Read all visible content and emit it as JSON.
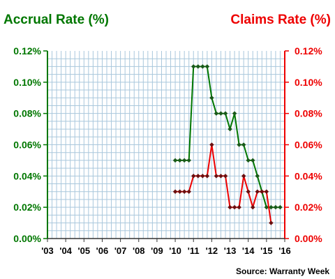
{
  "titles": {
    "left": "Accrual Rate (%)",
    "right": "Claims Rate (%)"
  },
  "source": "Source: Warranty Week",
  "colors": {
    "left_axis": "#007700",
    "right_axis": "#ee0000",
    "accrual_line": "#007700",
    "claims_line": "#ee0000",
    "grid": "#a9c7dc",
    "marker_accrual": "#1a5a1a",
    "marker_claims": "#6a1010"
  },
  "chart_data": {
    "type": "line",
    "title": "",
    "x_tick_labels": [
      "'03",
      "'04",
      "'05",
      "'06",
      "'07",
      "'08",
      "'09",
      "'10",
      "'11",
      "'12",
      "'13",
      "'14",
      "'15",
      "'16"
    ],
    "y_tick_labels_left": [
      "0.12%",
      "0.10%",
      "0.08%",
      "0.06%",
      "0.04%",
      "0.02%",
      "0.00%"
    ],
    "y_tick_labels_right": [
      "0.12%",
      "0.10%",
      "0.08%",
      "0.06%",
      "0.04%",
      "0.02%",
      "0.00%"
    ],
    "xlim": [
      2003,
      2016
    ],
    "ylim": [
      0,
      0.12
    ],
    "grid": true,
    "series": [
      {
        "name": "Accrual Rate (%)",
        "axis": "left",
        "x": [
          2010.0,
          2010.25,
          2010.5,
          2010.75,
          2011.0,
          2011.25,
          2011.5,
          2011.75,
          2012.0,
          2012.25,
          2012.5,
          2012.75,
          2013.0,
          2013.25,
          2013.5,
          2013.75,
          2014.0,
          2014.25,
          2014.5,
          2014.75,
          2015.0,
          2015.25,
          2015.5,
          2015.75
        ],
        "y": [
          0.05,
          0.05,
          0.05,
          0.05,
          0.11,
          0.11,
          0.11,
          0.11,
          0.09,
          0.08,
          0.08,
          0.08,
          0.07,
          0.08,
          0.06,
          0.06,
          0.05,
          0.05,
          0.04,
          0.03,
          0.02,
          0.02,
          0.02,
          0.02
        ]
      },
      {
        "name": "Claims Rate (%)",
        "axis": "right",
        "x": [
          2010.0,
          2010.25,
          2010.5,
          2010.75,
          2011.0,
          2011.25,
          2011.5,
          2011.75,
          2012.0,
          2012.25,
          2012.5,
          2012.75,
          2013.0,
          2013.25,
          2013.5,
          2013.75,
          2014.0,
          2014.25,
          2014.5,
          2014.75,
          2015.0,
          2015.25
        ],
        "y": [
          0.03,
          0.03,
          0.03,
          0.03,
          0.04,
          0.04,
          0.04,
          0.04,
          0.06,
          0.04,
          0.04,
          0.04,
          0.02,
          0.02,
          0.02,
          0.04,
          0.03,
          0.02,
          0.03,
          0.03,
          0.03,
          0.01
        ]
      }
    ]
  }
}
